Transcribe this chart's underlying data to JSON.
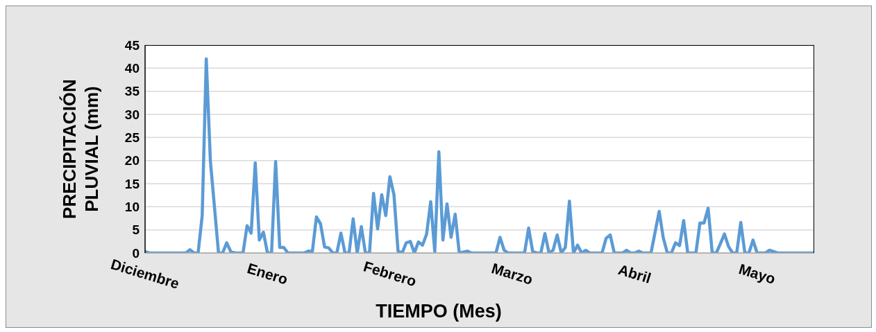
{
  "chart_data": {
    "type": "line",
    "xlabel": "TIEMPO (Mes)",
    "ylabel": "PRECIPITACIÓN PLUVIAL (mm)",
    "categories": [
      "Diciembre",
      null,
      null,
      null,
      null,
      null,
      null,
      null,
      null,
      null,
      null,
      null,
      null,
      null,
      null,
      null,
      null,
      null,
      null,
      null,
      null,
      null,
      null,
      null,
      null,
      null,
      null,
      null,
      null,
      null,
      "Enero",
      null,
      null,
      null,
      null,
      null,
      null,
      null,
      null,
      null,
      null,
      null,
      null,
      null,
      null,
      null,
      null,
      null,
      null,
      null,
      null,
      null,
      null,
      null,
      null,
      null,
      null,
      null,
      null,
      null,
      "Febrero",
      null,
      null,
      null,
      null,
      null,
      null,
      null,
      null,
      null,
      null,
      null,
      null,
      null,
      null,
      null,
      null,
      null,
      null,
      null,
      null,
      null,
      null,
      null,
      null,
      null,
      null,
      null,
      null,
      null,
      "Marzo",
      null,
      null,
      null,
      null,
      null,
      null,
      null,
      null,
      null,
      null,
      null,
      null,
      null,
      null,
      null,
      null,
      null,
      null,
      null,
      null,
      null,
      null,
      null,
      null,
      null,
      null,
      null,
      null,
      null,
      "Abril",
      null,
      null,
      null,
      null,
      null,
      null,
      null,
      null,
      null,
      null,
      null,
      null,
      null,
      null,
      null,
      null,
      null,
      null,
      null,
      null,
      null,
      null,
      null,
      null,
      null,
      null,
      null,
      null,
      null,
      "Mayo",
      null,
      null,
      null,
      null,
      null,
      null,
      null,
      null,
      null,
      null,
      null,
      null,
      null,
      null
    ],
    "values": [
      0.3,
      0,
      0,
      0,
      0,
      0,
      0,
      0,
      0,
      0,
      0,
      0.7,
      0,
      0,
      8.1,
      42,
      20,
      10,
      0,
      0,
      2.2,
      0.3,
      0,
      0,
      0,
      5.9,
      4.3,
      19.5,
      2.8,
      4.5,
      0,
      0,
      19.8,
      1.2,
      1.2,
      0,
      0,
      0,
      0,
      0,
      0.4,
      0.3,
      7.8,
      6.3,
      1.3,
      1.1,
      0,
      0,
      4.3,
      0,
      0,
      7.4,
      0,
      5.7,
      0,
      0,
      12.9,
      5.2,
      12.6,
      8.1,
      16.5,
      12.6,
      0.4,
      0,
      2.2,
      2.5,
      0,
      2.4,
      1.7,
      4.1,
      11.1,
      0.3,
      21.9,
      2.8,
      10.6,
      3.4,
      8.4,
      0,
      0.2,
      0.4,
      0,
      0,
      0,
      0,
      0,
      0,
      0,
      3.4,
      0.6,
      0,
      0,
      0,
      0,
      0,
      5.4,
      0.3,
      0,
      0,
      4.2,
      0,
      0.6,
      3.9,
      0,
      1.2,
      11.2,
      0,
      1.7,
      0,
      0.6,
      0,
      0,
      0,
      0,
      3.2,
      3.9,
      0,
      0,
      0,
      0.6,
      0,
      0,
      0.4,
      0,
      0,
      0,
      4.5,
      9,
      3.3,
      0,
      0,
      2.2,
      1.6,
      7,
      0,
      0,
      0,
      6.5,
      6.5,
      9.7,
      0,
      0,
      2,
      4.1,
      1.4,
      0,
      0,
      6.6,
      0,
      0,
      2.8,
      0,
      0,
      0,
      0.6,
      0.3,
      0,
      0,
      0,
      0,
      0,
      0,
      0,
      0,
      0,
      0
    ],
    "color": "#5b9bd5",
    "ylim": [
      0,
      45
    ],
    "yticks": [
      0,
      5,
      10,
      15,
      20,
      25,
      30,
      35,
      40,
      45
    ],
    "grid": "y",
    "legend": false
  }
}
